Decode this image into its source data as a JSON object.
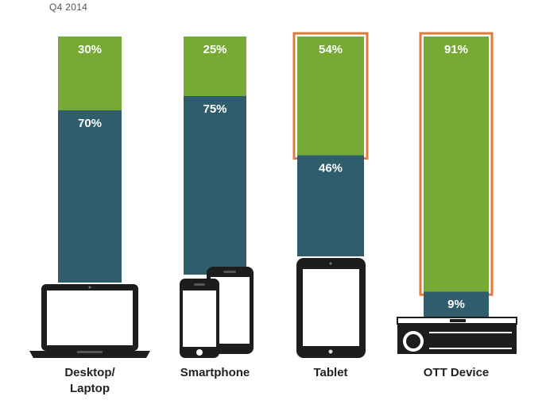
{
  "period_label": "Q4 2014",
  "colors": {
    "green": "#76aa35",
    "teal": "#2f5d6b",
    "highlight": "#e07b3a",
    "device": "#1d1d1f"
  },
  "chart_data": {
    "type": "bar",
    "stacked": true,
    "percent_stacked": true,
    "ylim": [
      0,
      100
    ],
    "categories": [
      "Desktop/ Laptop",
      "Smartphone",
      "Tablet",
      "OTT Device"
    ],
    "category_lines": [
      [
        "Desktop/",
        "Laptop"
      ],
      [
        "Smartphone"
      ],
      [
        "Tablet"
      ],
      [
        "OTT Device"
      ]
    ],
    "series": [
      {
        "color": "#76aa35",
        "values": [
          30,
          25,
          54,
          91
        ],
        "labels": [
          "30%",
          "25%",
          "54%",
          "91%"
        ]
      },
      {
        "color": "#2f5d6b",
        "values": [
          70,
          75,
          46,
          9
        ],
        "labels": [
          "70%",
          "75%",
          "46%",
          "9%"
        ]
      }
    ],
    "highlighted_segments": [
      {
        "category": "Tablet",
        "series_index": 0
      },
      {
        "category": "OTT Device",
        "series_index": 0
      }
    ],
    "device_icons": [
      "laptop-icon",
      "smartphone-icon",
      "tablet-icon",
      "set-top-box-icon"
    ]
  }
}
